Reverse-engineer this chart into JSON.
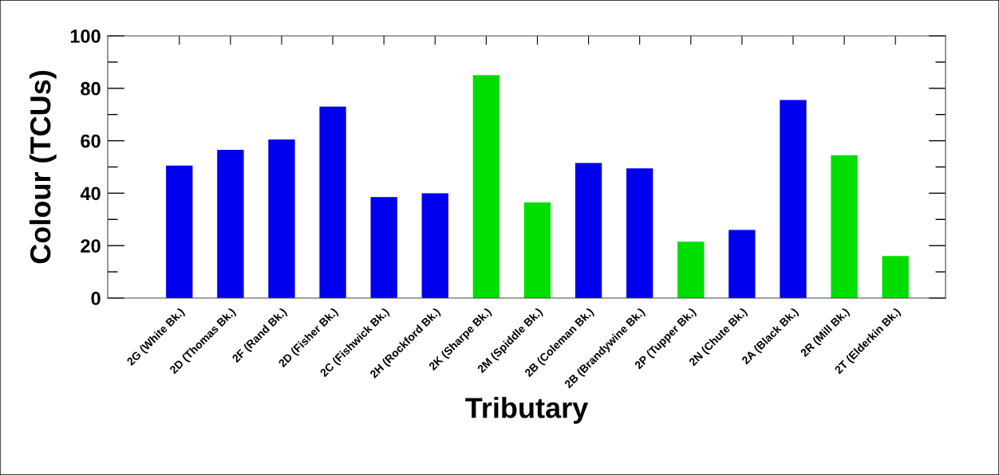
{
  "chart_data": {
    "type": "bar",
    "xlabel": "Tributary",
    "ylabel": "Colour (TCUs)",
    "categories": [
      "2G (White Bk.)",
      "2D (Thomas Bk.)",
      "2F (Rand Bk.)",
      "2D (Fisher Bk.)",
      "2C (Fishwick Bk.)",
      "2H (Rockford Bk.)",
      "2K (Sharpe Bk.)",
      "2M (Spiddle Bk.)",
      "2B (Coleman Bk.)",
      "2B (Brandywine Bk.)",
      "2P (Tupper Bk.)",
      "2N (Chute Bk.)",
      "2A (Black Bk.)",
      "2R (Mill Bk.)",
      "2T (Elderkin Bk.)"
    ],
    "values": [
      50.5,
      56.5,
      60.5,
      73,
      38.5,
      40,
      85,
      36.5,
      51.5,
      49.5,
      21.5,
      26,
      75.5,
      54.5,
      16
    ],
    "colors": [
      "#0000ee",
      "#0000ee",
      "#0000ee",
      "#0000ee",
      "#0000ee",
      "#0000ee",
      "#00dd00",
      "#00dd00",
      "#0000ee",
      "#0000ee",
      "#00dd00",
      "#0000ee",
      "#0000ee",
      "#00dd00",
      "#00dd00"
    ],
    "ylim": [
      0,
      100
    ],
    "yticks": [
      0,
      20,
      40,
      60,
      80,
      100
    ],
    "grid": false,
    "legend": false
  }
}
